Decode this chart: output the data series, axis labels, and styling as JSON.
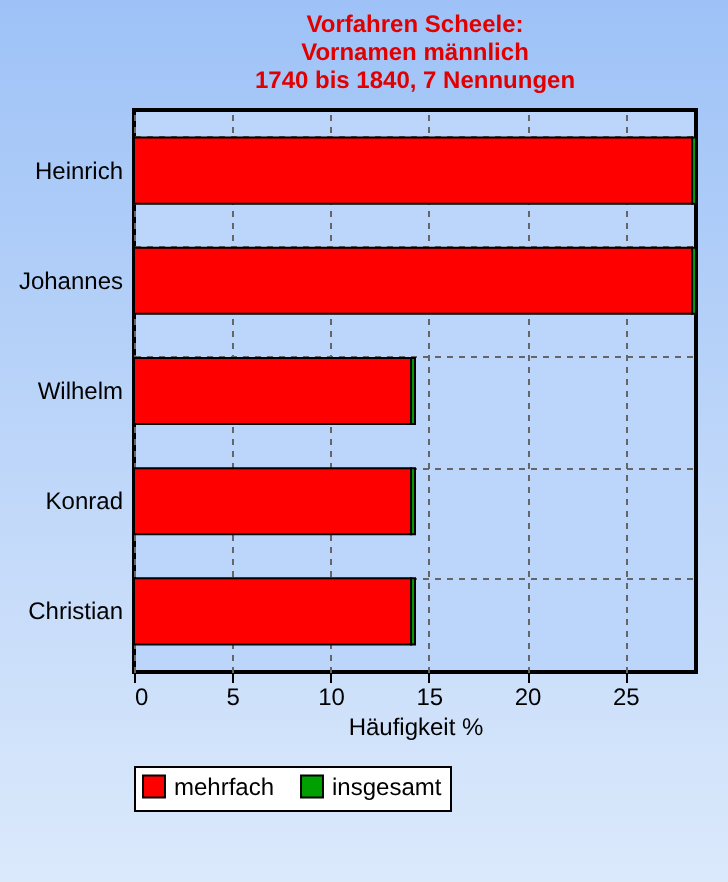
{
  "chart_data": {
    "type": "bar",
    "orientation": "horizontal",
    "stacked": true,
    "title": "Vorfahren Scheele:\nVornamen männlich\n1740 bis 1840, 7 Nennungen",
    "xlabel": "Häufigkeit %",
    "categories": [
      "Heinrich",
      "Johannes",
      "Wilhelm",
      "Konrad",
      "Christian"
    ],
    "series": [
      {
        "name": "mehrfach",
        "color": "#ff0000",
        "values": [
          28.4,
          28.4,
          14.1,
          14.1,
          14.1
        ]
      },
      {
        "name": "insgesamt",
        "color": "#00a000",
        "values": [
          0.2,
          0.2,
          0.2,
          0.2,
          0.2
        ]
      }
    ],
    "xlim": [
      0,
      28.6
    ],
    "xticks": [
      0,
      5,
      10,
      15,
      20,
      25
    ],
    "grid": true,
    "legend": "bottom"
  }
}
